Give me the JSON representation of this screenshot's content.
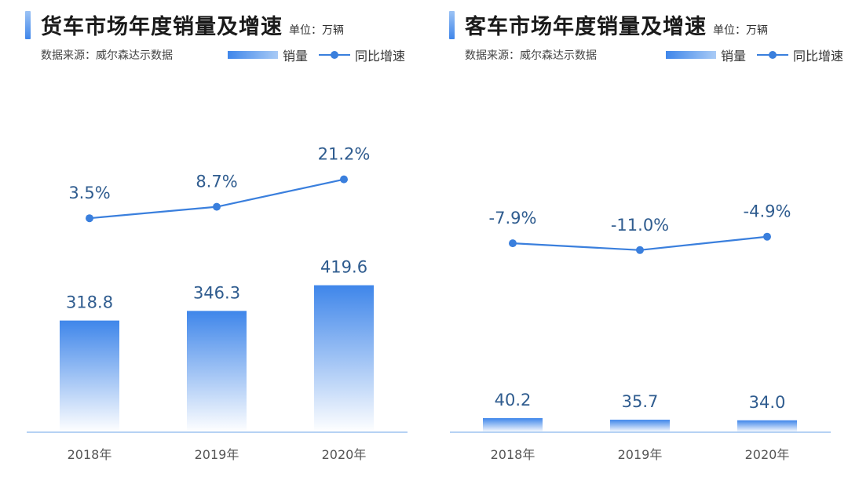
{
  "chart_data": [
    {
      "type": "bar",
      "title": "货车市场年度销量及增速",
      "unit": "单位：万辆",
      "source": "数据来源：威尔森达示数据",
      "legend": {
        "bar": "销量",
        "line": "同比增速"
      },
      "categories": [
        "2018年",
        "2019年",
        "2020年"
      ],
      "series": [
        {
          "name": "销量",
          "values": [
            318.8,
            346.3,
            419.6
          ],
          "labels": [
            "318.8",
            "346.3",
            "419.6"
          ]
        },
        {
          "name": "同比增速",
          "values": [
            3.5,
            8.7,
            21.2
          ],
          "labels": [
            "3.5%",
            "8.7%",
            "21.2%"
          ]
        }
      ]
    },
    {
      "type": "bar",
      "title": "客车市场年度销量及增速",
      "unit": "单位：万辆",
      "source": "数据来源：威尔森达示数据",
      "legend": {
        "bar": "销量",
        "line": "同比增速"
      },
      "categories": [
        "2018年",
        "2019年",
        "2020年"
      ],
      "series": [
        {
          "name": "销量",
          "values": [
            40.2,
            35.7,
            34.0
          ],
          "labels": [
            "40.2",
            "35.7",
            "34.0"
          ]
        },
        {
          "name": "同比增速",
          "values": [
            -7.9,
            -11.0,
            -4.9
          ],
          "labels": [
            "-7.9%",
            "-11.0%",
            "-4.9%"
          ]
        }
      ]
    }
  ],
  "colors": {
    "bar_top": "#3f86ea",
    "bar_bottom": "#ffffff",
    "line": "#3a7fdd",
    "axis": "#9dc4f0",
    "label": "#2f5c8f"
  }
}
